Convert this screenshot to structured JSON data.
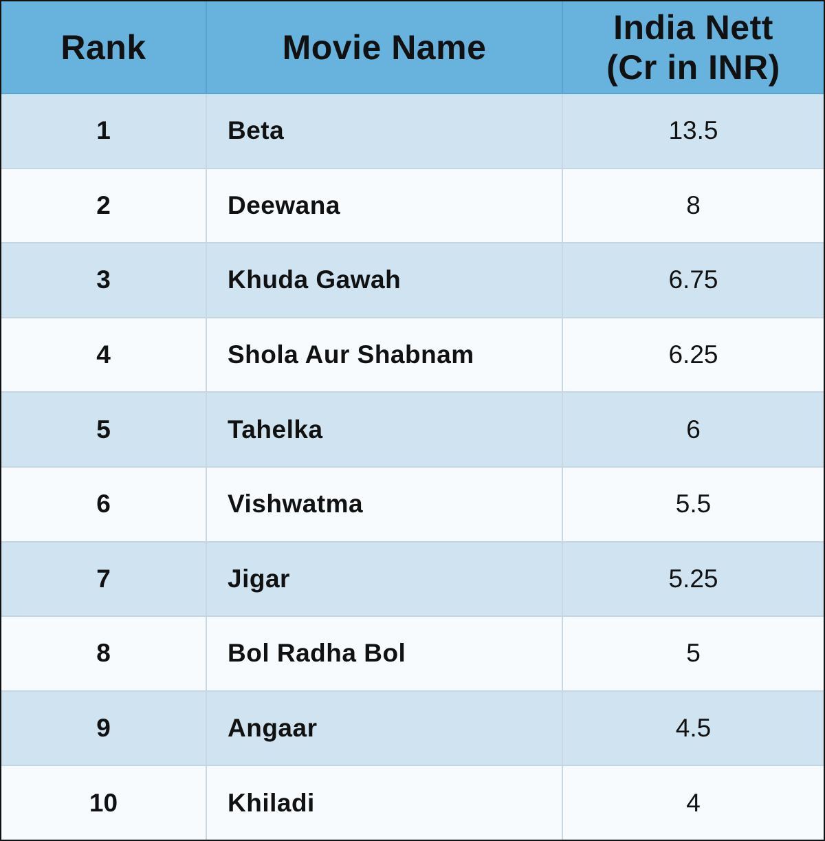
{
  "chart_data": {
    "type": "table",
    "columns": [
      "Rank",
      "Movie Name",
      "India Nett (Cr in INR)"
    ],
    "header": {
      "rank": "Rank",
      "movie_name": "Movie Name",
      "india_nett_line1": "India Nett",
      "india_nett_line2": "(Cr in INR)"
    },
    "rows": [
      {
        "rank": "1",
        "movie": "Beta",
        "nett": "13.5"
      },
      {
        "rank": "2",
        "movie": "Deewana",
        "nett": "8"
      },
      {
        "rank": "3",
        "movie": "Khuda Gawah",
        "nett": "6.75"
      },
      {
        "rank": "4",
        "movie": "Shola Aur Shabnam",
        "nett": "6.25"
      },
      {
        "rank": "5",
        "movie": "Tahelka",
        "nett": "6"
      },
      {
        "rank": "6",
        "movie": "Vishwatma",
        "nett": "5.5"
      },
      {
        "rank": "7",
        "movie": "Jigar",
        "nett": "5.25"
      },
      {
        "rank": "8",
        "movie": "Bol Radha Bol",
        "nett": "5"
      },
      {
        "rank": "9",
        "movie": "Angaar",
        "nett": "4.5"
      },
      {
        "rank": "10",
        "movie": "Khiladi",
        "nett": "4"
      }
    ],
    "colors": {
      "header_bg": "#67b3dd",
      "row_odd_bg": "#cfe3f1",
      "row_even_bg": "#f7fbfd",
      "text": "#111111",
      "outer_border": "#111111"
    }
  }
}
